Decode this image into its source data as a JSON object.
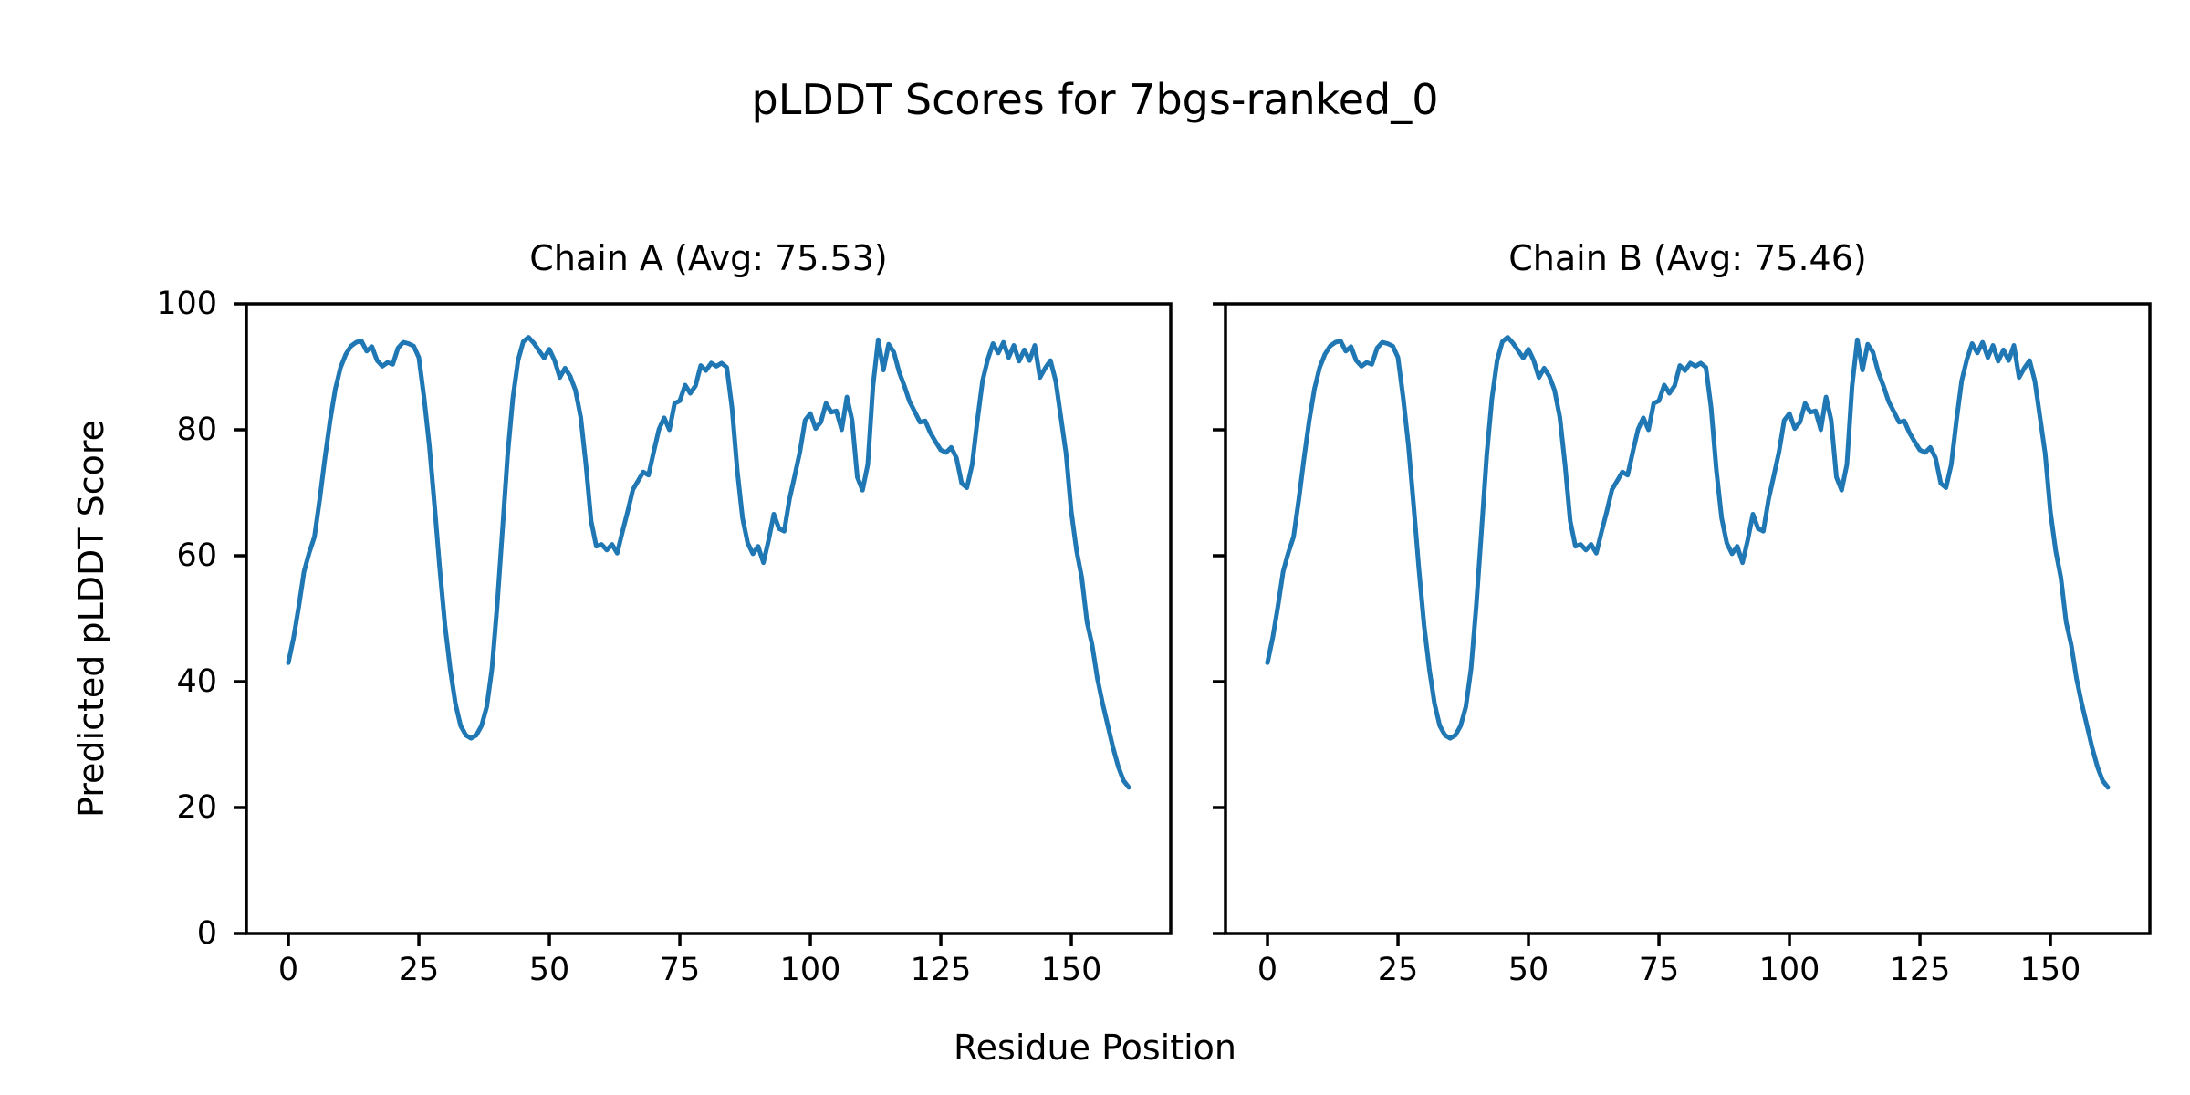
{
  "figure": {
    "background_color": "#ffffff",
    "text_color": "#000000",
    "spine_color": "#000000"
  },
  "chart_data": {
    "type": "line",
    "title": "pLDDT Scores for 7bgs-ranked_0",
    "xlabel": "Residue Position",
    "ylabel": "Predicted pLDDT Score",
    "line_color": "#1f77b4",
    "grid": false,
    "legend": null,
    "xlim": [
      -8.05,
      169.05
    ],
    "ylim": [
      0,
      100
    ],
    "x_ticks": [
      0,
      25,
      50,
      75,
      100,
      125,
      150
    ],
    "y_ticks": [
      0,
      20,
      40,
      60,
      80,
      100
    ],
    "x_start_residue": 0,
    "subplots": [
      {
        "chain": "A",
        "title": "Chain A (Avg: 75.53)",
        "avg": 75.53,
        "values": [
          43,
          47,
          52,
          57.5,
          60.5,
          63,
          69,
          75.5,
          81.5,
          86.5,
          89.9,
          92,
          93.3,
          93.9,
          94.1,
          92.5,
          93.2,
          91,
          90.1,
          90.7,
          90.4,
          93,
          93.9,
          93.7,
          93.3,
          91.5,
          85,
          77.5,
          68,
          58,
          49,
          42,
          36.5,
          33,
          31.5,
          31,
          31.5,
          33,
          36,
          42,
          52,
          64,
          76,
          85,
          91,
          94,
          94.7,
          93.8,
          92.6,
          91.4,
          92.8,
          91,
          88.3,
          89.8,
          88.5,
          86.3,
          82,
          74.5,
          65.5,
          61.5,
          61.8,
          60.9,
          61.8,
          60.4,
          63.8,
          67,
          70.5,
          71.9,
          73.3,
          72.8,
          76.5,
          80.1,
          81.9,
          80,
          84.2,
          84.6,
          87.1,
          85.8,
          87,
          90.2,
          89.4,
          90.6,
          90.1,
          90.6,
          89.9,
          83.5,
          73.5,
          66,
          62,
          60.3,
          61.5,
          58.9,
          62.5,
          66.6,
          64.3,
          63.9,
          69,
          72.7,
          76.5,
          81.5,
          82.6,
          80.2,
          81.2,
          84.2,
          82.8,
          83,
          80,
          85.2,
          81.5,
          72.5,
          70.4,
          74.5,
          87,
          94.3,
          89.5,
          93.6,
          92.3,
          89.2,
          87,
          84.5,
          82.9,
          81.2,
          81.4,
          79.5,
          78.1,
          76.8,
          76.4,
          77.2,
          75.5,
          71.5,
          70.8,
          74.5,
          81.5,
          87.8,
          91.2,
          93.7,
          92.2,
          93.9,
          91.5,
          93.4,
          90.9,
          92.7,
          91,
          93.4,
          88.3,
          89.8,
          91,
          87.8,
          82,
          76.2,
          67,
          60.8,
          56.5,
          49.5,
          45.8,
          40.5,
          36.5,
          33,
          29.5,
          26.5,
          24.3,
          23.2
        ]
      },
      {
        "chain": "B",
        "title": "Chain B (Avg: 75.46)",
        "avg": 75.46,
        "values": [
          43,
          47,
          52,
          57.5,
          60.5,
          63,
          69,
          75.5,
          81.5,
          86.5,
          89.9,
          92,
          93.3,
          93.9,
          94.1,
          92.5,
          93.2,
          91,
          90.1,
          90.7,
          90.4,
          93,
          93.9,
          93.7,
          93.3,
          91.5,
          85,
          77.5,
          68,
          58,
          49,
          42,
          36.5,
          33,
          31.5,
          31,
          31.5,
          33,
          36,
          42,
          52,
          64,
          76,
          85,
          91,
          94,
          94.7,
          93.8,
          92.6,
          91.4,
          92.8,
          91,
          88.3,
          89.8,
          88.5,
          86.3,
          82,
          74.5,
          65.5,
          61.5,
          61.8,
          60.9,
          61.8,
          60.4,
          63.8,
          67,
          70.5,
          71.9,
          73.3,
          72.8,
          76.5,
          80.1,
          81.9,
          80,
          84.2,
          84.6,
          87.1,
          85.8,
          87,
          90.2,
          89.4,
          90.6,
          90.1,
          90.6,
          89.9,
          83.5,
          73.5,
          66,
          62,
          60.3,
          61.5,
          58.9,
          62.5,
          66.6,
          64.3,
          63.9,
          69,
          72.7,
          76.5,
          81.5,
          82.6,
          80.2,
          81.2,
          84.2,
          82.8,
          83,
          80,
          85.2,
          81.5,
          72.5,
          70.4,
          74.5,
          87,
          94.3,
          89.5,
          93.6,
          92.3,
          89.2,
          87,
          84.5,
          82.9,
          81.2,
          81.4,
          79.5,
          78.1,
          76.8,
          76.4,
          77.2,
          75.5,
          71.5,
          70.8,
          74.5,
          81.5,
          87.8,
          91.2,
          93.7,
          92.2,
          93.9,
          91.5,
          93.4,
          90.9,
          92.7,
          91,
          93.4,
          88.3,
          89.8,
          91,
          87.8,
          82,
          76.2,
          67,
          60.8,
          56.5,
          49.5,
          45.8,
          40.5,
          36.5,
          33,
          29.5,
          26.5,
          24.3,
          23.2
        ]
      }
    ]
  }
}
